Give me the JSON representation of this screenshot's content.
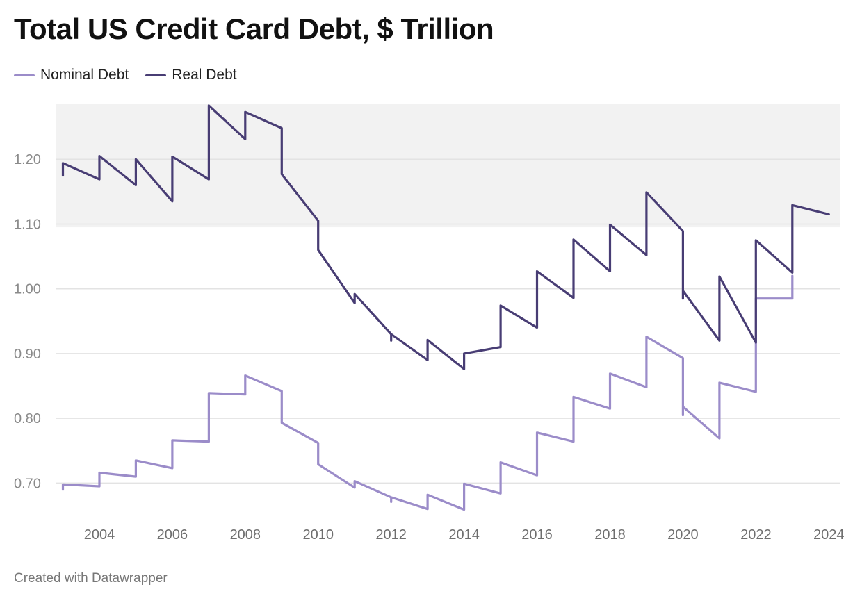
{
  "chart_data": {
    "type": "line",
    "title": "Total US Credit Card Debt, $ Trillion",
    "xlabel": "",
    "ylabel": "",
    "xlim": [
      2002.8,
      2024.3
    ],
    "ylim": [
      0.65,
      1.285
    ],
    "y_ticks": [
      0.7,
      0.8,
      0.9,
      1.0,
      1.1,
      1.2
    ],
    "y_tick_labels": [
      "0.70",
      "0.80",
      "0.90",
      "1.00",
      "1.10",
      "1.20"
    ],
    "x_ticks": [
      2004,
      2006,
      2008,
      2010,
      2012,
      2014,
      2016,
      2018,
      2020,
      2022,
      2024
    ],
    "x_tick_labels": [
      "2004",
      "2006",
      "2008",
      "2010",
      "2012",
      "2014",
      "2016",
      "2018",
      "2020",
      "2022",
      "2024"
    ],
    "shaded_band": {
      "y_from": 1.095,
      "y_to": 1.285
    },
    "series": [
      {
        "name": "Nominal Debt",
        "color": "#9b8cc9",
        "points": [
          [
            2003.0,
            0.69
          ],
          [
            2003.0,
            0.698
          ],
          [
            2004.0,
            0.695
          ],
          [
            2004.0,
            0.716
          ],
          [
            2005.0,
            0.71
          ],
          [
            2005.0,
            0.735
          ],
          [
            2006.0,
            0.723
          ],
          [
            2006.0,
            0.766
          ],
          [
            2007.0,
            0.764
          ],
          [
            2007.0,
            0.839
          ],
          [
            2008.0,
            0.837
          ],
          [
            2008.0,
            0.866
          ],
          [
            2009.0,
            0.842
          ],
          [
            2009.0,
            0.793
          ],
          [
            2010.0,
            0.762
          ],
          [
            2010.0,
            0.729
          ],
          [
            2011.0,
            0.693
          ],
          [
            2011.0,
            0.703
          ],
          [
            2012.0,
            0.678
          ],
          [
            2012.0,
            0.671
          ],
          [
            2012.0,
            0.678
          ],
          [
            2013.0,
            0.66
          ],
          [
            2013.0,
            0.682
          ],
          [
            2014.0,
            0.659
          ],
          [
            2014.0,
            0.699
          ],
          [
            2015.0,
            0.684
          ],
          [
            2015.0,
            0.732
          ],
          [
            2016.0,
            0.712
          ],
          [
            2016.0,
            0.778
          ],
          [
            2017.0,
            0.764
          ],
          [
            2017.0,
            0.833
          ],
          [
            2018.0,
            0.815
          ],
          [
            2018.0,
            0.869
          ],
          [
            2019.0,
            0.848
          ],
          [
            2019.0,
            0.926
          ],
          [
            2020.0,
            0.893
          ],
          [
            2020.0,
            0.805
          ],
          [
            2020.0,
            0.818
          ],
          [
            2021.0,
            0.769
          ],
          [
            2021.0,
            0.855
          ],
          [
            2022.0,
            0.841
          ],
          [
            2022.0,
            0.985
          ],
          [
            2023.0,
            0.985
          ],
          [
            2023.0,
            1.02
          ]
        ]
      },
      {
        "name": "Real Debt",
        "color": "#483d74",
        "points": [
          [
            2003.0,
            1.175
          ],
          [
            2003.0,
            1.194
          ],
          [
            2004.0,
            1.169
          ],
          [
            2004.0,
            1.205
          ],
          [
            2005.0,
            1.16
          ],
          [
            2005.0,
            1.2
          ],
          [
            2006.0,
            1.135
          ],
          [
            2006.0,
            1.204
          ],
          [
            2007.0,
            1.169
          ],
          [
            2007.0,
            1.283
          ],
          [
            2008.0,
            1.231
          ],
          [
            2008.0,
            1.273
          ],
          [
            2009.0,
            1.248
          ],
          [
            2009.0,
            1.177
          ],
          [
            2010.0,
            1.105
          ],
          [
            2010.0,
            1.06
          ],
          [
            2011.0,
            0.978
          ],
          [
            2011.0,
            0.992
          ],
          [
            2012.0,
            0.93
          ],
          [
            2012.0,
            0.92
          ],
          [
            2012.0,
            0.93
          ],
          [
            2013.0,
            0.89
          ],
          [
            2013.0,
            0.921
          ],
          [
            2014.0,
            0.876
          ],
          [
            2014.0,
            0.9
          ],
          [
            2015.0,
            0.91
          ],
          [
            2015.0,
            0.974
          ],
          [
            2016.0,
            0.94
          ],
          [
            2016.0,
            1.027
          ],
          [
            2017.0,
            0.986
          ],
          [
            2017.0,
            1.076
          ],
          [
            2018.0,
            1.027
          ],
          [
            2018.0,
            1.099
          ],
          [
            2019.0,
            1.052
          ],
          [
            2019.0,
            1.149
          ],
          [
            2020.0,
            1.089
          ],
          [
            2020.0,
            0.985
          ],
          [
            2020.0,
            0.997
          ],
          [
            2021.0,
            0.92
          ],
          [
            2021.0,
            1.019
          ],
          [
            2022.0,
            0.917
          ],
          [
            2022.0,
            1.075
          ],
          [
            2023.0,
            1.025
          ],
          [
            2023.0,
            1.129
          ],
          [
            2024.0,
            1.115
          ]
        ]
      }
    ]
  },
  "footer": {
    "credit": "Created with Datawrapper"
  },
  "colors": {
    "shade": "#f2f2f2",
    "grid": "#e3e3e3"
  }
}
